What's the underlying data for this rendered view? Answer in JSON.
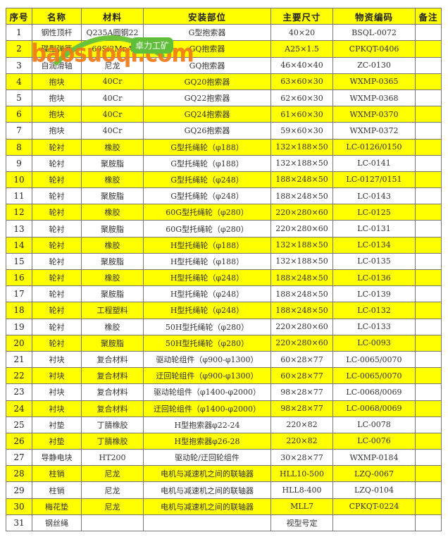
{
  "headers": [
    "序号",
    "名称",
    "材料",
    "安装部位",
    "主要尺寸",
    "物资编码",
    "备注"
  ],
  "rows": [
    [
      "1",
      "钢性顶杆",
      "Q235A圆钢22",
      "G型抱索器",
      "40×20",
      "BSQL-0072",
      ""
    ],
    [
      "2",
      "碟型弹簧",
      "60Si2MnA",
      "GQ抱索器",
      "A25×1.5",
      "CPKQT-0406",
      ""
    ],
    [
      "3",
      "自润滑轴",
      "尼龙",
      "GQ抱索器",
      "46×40×40",
      "ZC-0130",
      ""
    ],
    [
      "4",
      "抱块",
      "40Cr",
      "GQ20抱索器",
      "63×60×30",
      "WXMP-0365",
      ""
    ],
    [
      "5",
      "抱块",
      "40Cr",
      "GQ22抱索器",
      "62×60×30",
      "WXMP-0368",
      ""
    ],
    [
      "6",
      "抱块",
      "40Cr",
      "GQ24抱索器",
      "61×60×30",
      "WXMP-0370",
      ""
    ],
    [
      "7",
      "抱块",
      "40Cr",
      "GQ26抱索器",
      "59×60×30",
      "WXMP-0372",
      ""
    ],
    [
      "8",
      "轮衬",
      "橡胶",
      "G型托绳轮（φ188）",
      "132×188×50",
      "LC-0126/0150",
      ""
    ],
    [
      "9",
      "轮衬",
      "聚胺脂",
      "G型托绳轮（φ188）",
      "132×188×50",
      "LC-0141",
      ""
    ],
    [
      "10",
      "轮衬",
      "橡胶",
      "G型托绳轮（φ248）",
      "188×248×50",
      "LC-0127/0151",
      ""
    ],
    [
      "11",
      "轮衬",
      "聚胺脂",
      "G型托绳轮（φ248）",
      "188×248×50",
      "LC-0143",
      ""
    ],
    [
      "12",
      "轮衬",
      "橡胶",
      "60G型托绳轮（φ280）",
      "220×280×60",
      "LC-0125",
      ""
    ],
    [
      "13",
      "轮衬",
      "聚胺脂",
      "60G型托绳轮（φ280）",
      "220×280×60",
      "LC-0131",
      ""
    ],
    [
      "14",
      "轮衬",
      "橡胶",
      "H型托绳轮（φ188）",
      "132×188×50",
      "LC-0134",
      ""
    ],
    [
      "15",
      "轮衬",
      "聚胺脂",
      "H型托绳轮（φ188）",
      "132×188×50",
      "LC-0135",
      ""
    ],
    [
      "16",
      "轮衬",
      "橡胶",
      "H型托绳轮（φ248）",
      "188×248×50",
      "LC-0136",
      ""
    ],
    [
      "17",
      "轮衬",
      "聚胺脂",
      "H型托绳轮（φ248）",
      "188×248×50",
      "LC-0139",
      ""
    ],
    [
      "18",
      "轮衬",
      "工程塑料",
      "H型托绳轮（φ248）",
      "188×248×50",
      "LC-0132",
      ""
    ],
    [
      "19",
      "轮衬",
      "橡胶",
      "50H型托绳轮（φ280）",
      "220×280×60",
      "LC-0133",
      ""
    ],
    [
      "20",
      "轮衬",
      "聚胺脂",
      "50H型托绳轮（φ280）",
      "220×280×60",
      "LC-0093",
      ""
    ],
    [
      "21",
      "衬块",
      "复合材料",
      "驱动轮组件（φ900-φ1300）",
      "60×28×77",
      "LC-0065/0070",
      ""
    ],
    [
      "22",
      "衬块",
      "复合材料",
      "迂回轮组件（φ900-φ1300）",
      "60×28×77",
      "LC-0065/0070",
      ""
    ],
    [
      "23",
      "衬块",
      "复合材料",
      "驱动轮组件（φ1400-φ2000）",
      "98×28×77",
      "LC-0068/0069",
      ""
    ],
    [
      "24",
      "衬块",
      "复合材料",
      "迂回轮组件（φ1400-φ2000）",
      "98×28×77",
      "LC-0068/0069",
      ""
    ],
    [
      "25",
      "衬垫",
      "丁腈橡胶",
      "H型抱索器φ22-24",
      "220×82",
      "LC-0078",
      ""
    ],
    [
      "26",
      "衬垫",
      "丁腈橡胶",
      "H型抱索器φ26-28",
      "220×82",
      "LC-0076",
      ""
    ],
    [
      "27",
      "导静电块",
      "HT200",
      "驱动轮/迂回轮组件",
      "30×28×77",
      "WXMP-0184",
      ""
    ],
    [
      "28",
      "柱销",
      "尼龙",
      "电机与减速机之间的联轴器",
      "HLL10-500",
      "LZQ-0067",
      ""
    ],
    [
      "29",
      "柱销",
      "尼龙",
      "电机与减速机之间的联轴器",
      "HLL8-400",
      "LZQ-0104",
      ""
    ],
    [
      "30",
      "梅花垫",
      "尼龙",
      "电机与减速机之间的联轴器",
      "MLL7",
      "CPKQT-0224",
      ""
    ],
    [
      "31",
      "钢丝绳",
      "",
      "",
      "视型号定",
      "",
      ""
    ]
  ],
  "highlight_color": "#ffff00",
  "watermark": {
    "text": "baosuoqi.com",
    "bubble": "卓力工矿"
  }
}
